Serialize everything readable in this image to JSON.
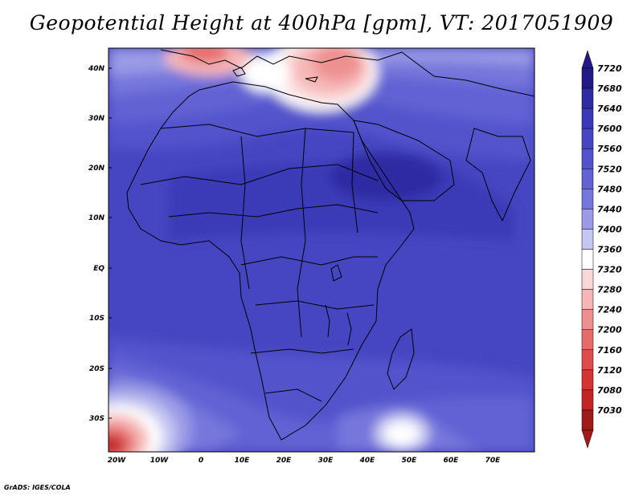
{
  "title": "Geopotential Height at 400hPa [gpm], VT: 2017051909",
  "credit": "GrADS: IGES/COLA",
  "lat_labels": [
    "40N",
    "30N",
    "20N",
    "10N",
    "EQ",
    "10S",
    "20S",
    "30S"
  ],
  "lon_labels": [
    "20W",
    "10W",
    "0",
    "10E",
    "20E",
    "30E",
    "40E",
    "50E",
    "60E",
    "70E"
  ],
  "colorbar": {
    "levels": [
      "7720",
      "7680",
      "7640",
      "7600",
      "7560",
      "7520",
      "7480",
      "7440",
      "7400",
      "7360",
      "7320",
      "7280",
      "7240",
      "7200",
      "7160",
      "7120",
      "7080",
      "7030"
    ],
    "colors": [
      "#241a86",
      "#2f2ca3",
      "#3a3ab8",
      "#4646c2",
      "#5252cc",
      "#6262d4",
      "#7676dc",
      "#9a9ae6",
      "#c6c6f2",
      "#ffffff",
      "#fbd8d8",
      "#f6b6b6",
      "#ee9090",
      "#e66c6c",
      "#de4c4c",
      "#d43434",
      "#c02626",
      "#a01a1a"
    ]
  },
  "chart_data": {
    "type": "heatmap",
    "variable": "Geopotential Height at 400hPa",
    "units": "gpm",
    "valid_time": "2017051909",
    "lon_range": [
      -23,
      80
    ],
    "lat_range": [
      -37,
      45
    ],
    "contour_levels": [
      7030,
      7080,
      7120,
      7160,
      7200,
      7240,
      7280,
      7320,
      7360,
      7400,
      7440,
      7480,
      7520,
      7560,
      7600,
      7640,
      7680,
      7720
    ],
    "features": [
      {
        "region": "tropical Africa and Indian Ocean",
        "approx_value_range": [
          7600,
          7640
        ]
      },
      {
        "region": "Mediterranean / eastern Europe",
        "approx_value_range": [
          7240,
          7400
        ]
      },
      {
        "region": "South Atlantic southwest corner",
        "approx_value_range": [
          7080,
          7200
        ]
      },
      {
        "region": "south of Madagascar",
        "approx_value_range": [
          7360,
          7440
        ]
      }
    ]
  }
}
